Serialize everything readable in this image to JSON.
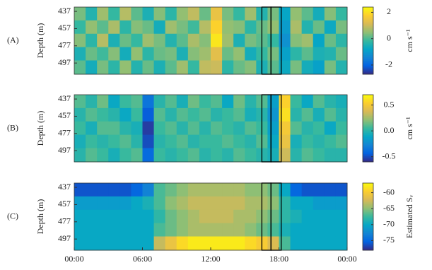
{
  "chart_data": [
    {
      "type": "heatmap",
      "label": "(A)",
      "ylabel": "Depth (m)",
      "colormap": "parula",
      "y_reversed": true,
      "x": [
        0.5,
        1.5,
        2.5,
        3.5,
        4.5,
        5.5,
        6.5,
        7.5,
        8.5,
        9.5,
        10.5,
        11.5,
        12.5,
        13.5,
        14.5,
        15.5,
        16.5,
        17.5,
        18.5,
        19.5,
        20.5,
        21.5,
        22.5,
        23.5
      ],
      "y": [
        440,
        455,
        471,
        486,
        502
      ],
      "z": [
        [
          0.3,
          -0.4,
          0.6,
          -0.2,
          0.8,
          0.1,
          -0.5,
          0.4,
          -0.3,
          0.5,
          0.9,
          0.2,
          1.4,
          0.3,
          -0.2,
          0.6,
          -0.4,
          0.3,
          -0.8,
          0.5,
          0.1,
          -0.6,
          0.4,
          -0.2
        ],
        [
          -0.2,
          0.5,
          0.1,
          0.7,
          -0.3,
          0.4,
          0.2,
          -0.6,
          0.6,
          0.3,
          -0.1,
          0.8,
          1.8,
          0.5,
          0.4,
          -0.3,
          0.2,
          0.5,
          -1.0,
          0.7,
          -0.4,
          0.2,
          -0.7,
          0.3
        ],
        [
          0.4,
          -0.3,
          0.8,
          -0.5,
          0.2,
          -0.2,
          0.6,
          0.3,
          -0.4,
          0.1,
          0.7,
          0.4,
          2.1,
          0.6,
          -0.5,
          0.3,
          0.1,
          -0.2,
          -1.2,
          0.4,
          0.6,
          -0.8,
          0.2,
          -0.3
        ],
        [
          -0.5,
          0.2,
          -0.1,
          0.4,
          -0.6,
          0.5,
          -0.3,
          0.2,
          0.3,
          -0.5,
          0.4,
          0.6,
          1.3,
          0.2,
          0.5,
          -0.6,
          -0.2,
          0.3,
          -0.9,
          -0.3,
          0.1,
          -0.5,
          -0.4,
          0.2
        ],
        [
          0.1,
          -0.6,
          0.3,
          -0.3,
          0.5,
          -0.4,
          0.2,
          -0.5,
          0.1,
          0.6,
          -0.2,
          0.9,
          1.0,
          -0.3,
          0.2,
          0.4,
          -0.5,
          0.1,
          -0.7,
          0.3,
          -0.6,
          -0.9,
          0.3,
          -0.4
        ]
      ],
      "xlim": [
        0,
        24
      ],
      "ylim": [
        432,
        510
      ],
      "yticks": [
        437,
        457,
        477,
        497
      ],
      "colorbar": {
        "clim": [
          -2.7,
          2.4
        ],
        "ticks": [
          2,
          0,
          -2
        ],
        "label": "cm s⁻¹"
      }
    },
    {
      "type": "heatmap",
      "label": "(B)",
      "ylabel": "Depth (m)",
      "colormap": "parula",
      "y_reversed": true,
      "x": [
        0.5,
        1.5,
        2.5,
        3.5,
        4.5,
        5.5,
        6.5,
        7.5,
        8.5,
        9.5,
        10.5,
        11.5,
        12.5,
        13.5,
        14.5,
        15.5,
        16.5,
        17.5,
        18.5,
        19.5,
        20.5,
        21.5,
        22.5,
        23.5
      ],
      "y": [
        440,
        455,
        471,
        486,
        502
      ],
      "z": [
        [
          0.1,
          0.0,
          0.15,
          -0.1,
          0.05,
          0.1,
          -0.35,
          0.0,
          0.1,
          -0.05,
          0.15,
          0.05,
          0.1,
          -0.1,
          0.15,
          0.0,
          0.1,
          -0.15,
          0.55,
          0.05,
          -0.1,
          0.1,
          0.0,
          -0.05
        ],
        [
          0.0,
          0.1,
          0.05,
          0.0,
          -0.1,
          0.05,
          -0.45,
          0.1,
          0.0,
          0.1,
          0.05,
          0.1,
          0.0,
          0.05,
          0.1,
          -0.05,
          0.0,
          -0.2,
          0.6,
          0.0,
          0.1,
          -0.05,
          0.1,
          0.0
        ],
        [
          0.05,
          -0.05,
          0.1,
          0.1,
          0.0,
          -0.05,
          -0.55,
          0.05,
          0.1,
          0.0,
          0.1,
          0.0,
          0.1,
          0.05,
          0.0,
          0.1,
          0.05,
          -0.15,
          0.5,
          0.1,
          0.0,
          0.05,
          -0.1,
          0.05
        ],
        [
          -0.05,
          0.05,
          0.0,
          0.05,
          0.1,
          0.0,
          -0.5,
          0.0,
          0.05,
          0.1,
          0.0,
          0.05,
          0.05,
          0.1,
          0.05,
          0.0,
          0.1,
          -0.1,
          0.45,
          -0.05,
          0.05,
          0.0,
          0.05,
          0.1
        ],
        [
          0.0,
          0.1,
          0.05,
          -0.05,
          0.05,
          0.1,
          -0.4,
          0.05,
          0.0,
          0.05,
          0.1,
          0.0,
          0.05,
          0.0,
          0.1,
          0.05,
          0.0,
          -0.05,
          0.35,
          0.0,
          0.1,
          0.05,
          0.0,
          0.0
        ]
      ],
      "xlim": [
        0,
        24
      ],
      "ylim": [
        432,
        510
      ],
      "yticks": [
        437,
        457,
        477,
        497
      ],
      "colorbar": {
        "clim": [
          -0.6,
          0.7
        ],
        "ticks": [
          0.5,
          {
            "value": 0,
            "label": "0.0"
          },
          -0.5
        ],
        "label": "cm s⁻¹"
      }
    },
    {
      "type": "heatmap",
      "label": "(C)",
      "ylabel": "Depth (m)",
      "colormap": "parula",
      "y_reversed": true,
      "x": [
        0.5,
        1.5,
        2.5,
        3.5,
        4.5,
        5.5,
        6.5,
        7.5,
        8.5,
        9.5,
        10.5,
        11.5,
        12.5,
        13.5,
        14.5,
        15.5,
        16.5,
        17.5,
        18.5,
        19.5,
        20.5,
        21.5,
        22.5,
        23.5
      ],
      "y": [
        440,
        455,
        471,
        486,
        502
      ],
      "z": [
        [
          -76,
          -76,
          -76,
          -76,
          -76,
          -75,
          -73,
          -67,
          -66,
          -65,
          -64,
          -64,
          -64,
          -64,
          -64,
          -65,
          -65,
          -66,
          -70,
          -75,
          -76,
          -76,
          -76,
          -76
        ],
        [
          -71,
          -71,
          -71,
          -71,
          -71,
          -70,
          -69,
          -67,
          -65,
          -64,
          -63,
          -63,
          -63,
          -63,
          -63,
          -64,
          -64,
          -65,
          -68,
          -70,
          -70,
          -71,
          -71,
          -71
        ],
        [
          -70,
          -70,
          -70,
          -70,
          -70,
          -70,
          -70,
          -68,
          -66,
          -65,
          -64,
          -63,
          -63,
          -63,
          -64,
          -64,
          -65,
          -66,
          -68,
          -69,
          -70,
          -70,
          -70,
          -70
        ],
        [
          -70,
          -70,
          -70,
          -70,
          -70,
          -70,
          -70,
          -67,
          -66,
          -65,
          -64,
          -64,
          -64,
          -64,
          -64,
          -65,
          -66,
          -67,
          -69,
          -70,
          -70,
          -70,
          -70,
          -70
        ],
        [
          -70,
          -70,
          -70,
          -70,
          -70,
          -70,
          -70,
          -63,
          -61,
          -59,
          -58,
          -58,
          -58,
          -58,
          -58,
          -59,
          -60,
          -62,
          -67,
          -70,
          -70,
          -70,
          -70,
          -70
        ]
      ],
      "xlim": [
        0,
        24
      ],
      "ylim": [
        432,
        510
      ],
      "yticks": [
        437,
        457,
        477,
        497
      ],
      "xticks": [
        {
          "value": 0,
          "label": "00:00"
        },
        {
          "value": 6,
          "label": "06:00"
        },
        {
          "value": 12,
          "label": "12:00"
        },
        {
          "value": 18,
          "label": "18:00"
        },
        {
          "value": 24,
          "label": "00:00"
        }
      ],
      "colorbar": {
        "clim": [
          -78,
          -57
        ],
        "ticks": [
          -60,
          -65,
          -70,
          -75
        ],
        "label": "Estimated Sᵥ"
      }
    }
  ]
}
